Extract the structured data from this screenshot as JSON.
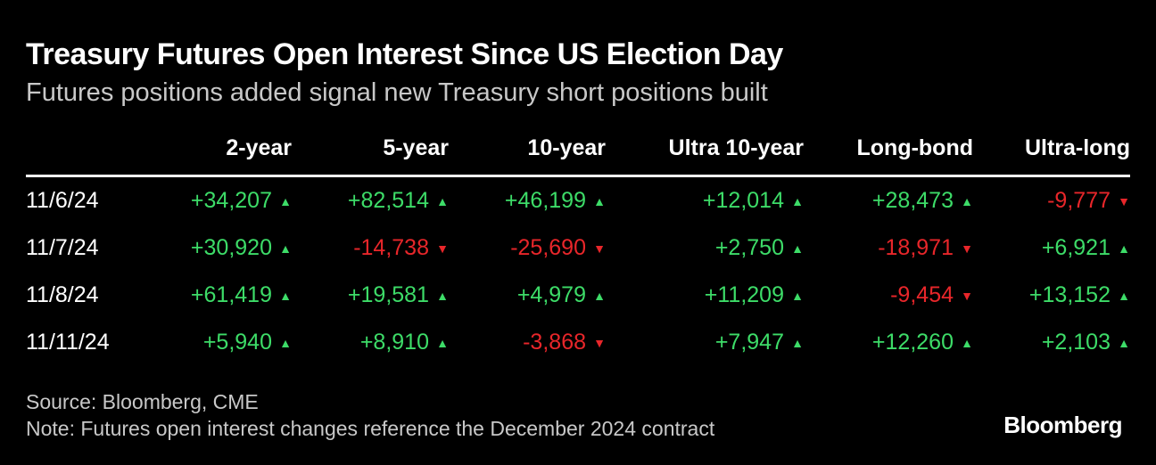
{
  "title": "Treasury Futures Open Interest Since US Election Day",
  "subtitle": "Futures positions added signal new Treasury short positions built",
  "source": "Source: Bloomberg, CME",
  "note": "Note: Futures open interest changes reference the December 2024 contract",
  "logo": "Bloomberg",
  "colors": {
    "background": "#000000",
    "positive": "#3ddc68",
    "negative": "#e8262a",
    "text": "#ffffff",
    "muted": "#c8c8c8"
  },
  "chart_data": {
    "type": "table",
    "columns": [
      "2-year",
      "5-year",
      "10-year",
      "Ultra 10-year",
      "Long-bond",
      "Ultra-long"
    ],
    "rows": [
      {
        "date": "11/6/24",
        "values": [
          34207,
          82514,
          46199,
          12014,
          28473,
          -9777
        ],
        "labels": [
          "+34,207",
          "+82,514",
          "+46,199",
          "+12,014",
          "+28,473",
          "-9,777"
        ]
      },
      {
        "date": "11/7/24",
        "values": [
          30920,
          -14738,
          -25690,
          2750,
          -18971,
          6921
        ],
        "labels": [
          "+30,920",
          "-14,738",
          "-25,690",
          "+2,750",
          "-18,971",
          "+6,921"
        ]
      },
      {
        "date": "11/8/24",
        "values": [
          61419,
          19581,
          4979,
          11209,
          -9454,
          13152
        ],
        "labels": [
          "+61,419",
          "+19,581",
          "+4,979",
          "+11,209",
          "-9,454",
          "+13,152"
        ]
      },
      {
        "date": "11/11/24",
        "values": [
          5940,
          8910,
          -3868,
          7947,
          12260,
          2103
        ],
        "labels": [
          "+5,940",
          "+8,910",
          "-3,868",
          "+7,947",
          "+12,260",
          "+2,103"
        ]
      }
    ]
  }
}
